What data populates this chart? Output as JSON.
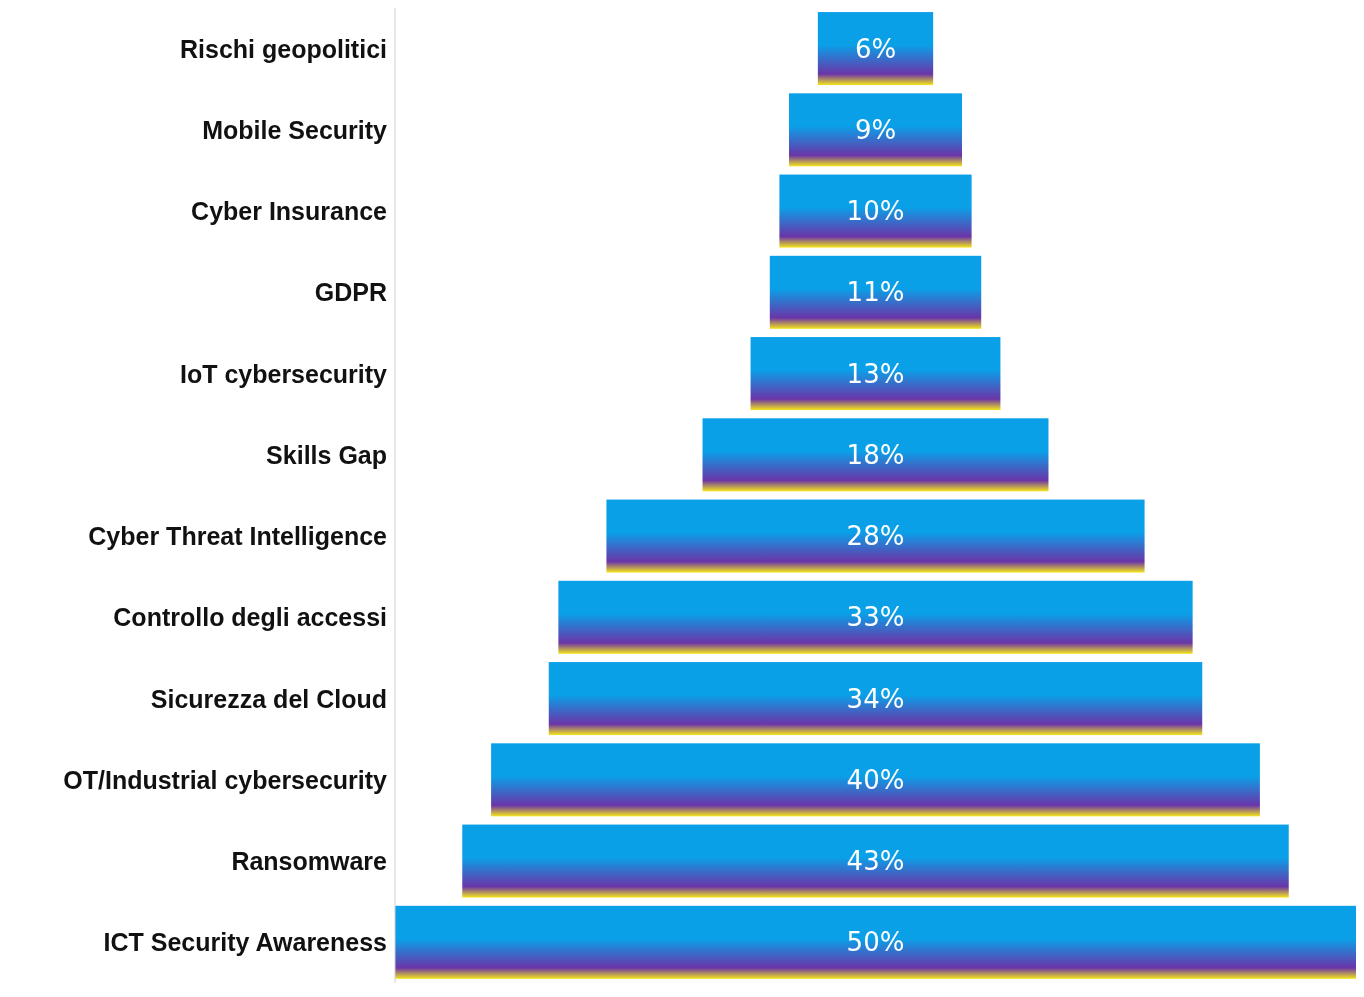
{
  "chart_data": {
    "type": "other",
    "categories": [
      "Rischi geopolitici",
      "Mobile Security",
      "Cyber Insurance",
      "GDPR",
      "IoT cybersecurity",
      "Skills Gap",
      "Cyber Threat Intelligence",
      "Controllo degli accessi",
      "Sicurezza del Cloud",
      "OT/Industrial cybersecurity",
      "Ransomware",
      "ICT Security Awareness"
    ],
    "values": [
      6,
      9,
      10,
      11,
      13,
      18,
      28,
      33,
      34,
      40,
      43,
      50
    ],
    "value_labels": [
      "6%",
      "9%",
      "10%",
      "11%",
      "13%",
      "18%",
      "28%",
      "33%",
      "34%",
      "40%",
      "43%",
      "50%"
    ],
    "color": "#0aa0e8"
  }
}
